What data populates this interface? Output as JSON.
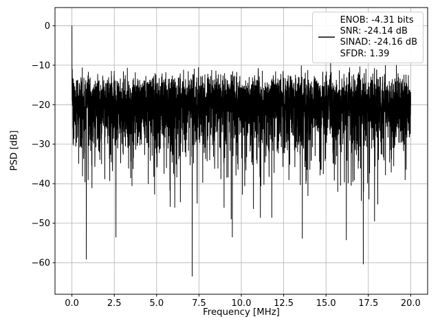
{
  "figure": {
    "background": "#ffffff"
  },
  "chart_data": {
    "type": "line",
    "title": "",
    "xlabel": "Frequency [MHz]",
    "ylabel": "PSD [dB]",
    "xlim": [
      -1,
      21
    ],
    "ylim": [
      -68,
      4.6
    ],
    "xticks": [
      0,
      2.5,
      5,
      7.5,
      10,
      12.5,
      15,
      17.5,
      20
    ],
    "xtick_labels": [
      "0.0",
      "2.5",
      "5.0",
      "7.5",
      "10.0",
      "12.5",
      "15.0",
      "17.5",
      "20.0"
    ],
    "yticks": [
      0,
      -10,
      -20,
      -30,
      -40,
      -50,
      -60
    ],
    "ytick_labels": [
      "0",
      "−10",
      "−20",
      "−30",
      "−40",
      "−50",
      "−60"
    ],
    "grid": true,
    "grid_color": "#b0b0b0",
    "spine_color": "#000000",
    "legend": {
      "position": "upper right",
      "line_color": "#000000",
      "entries": [
        "ENOB: -4.31 bits",
        "SNR: -24.14 dB",
        "SINAD: -24.16 dB",
        "SFDR: 1.39"
      ]
    },
    "series": [
      {
        "name": "PSD",
        "color": "#000000",
        "n_points": 4096,
        "x_range_mhz": [
          0,
          20
        ],
        "noise_offset_db": -18.5,
        "noise_typical_top_db": -12,
        "noise_dense_band_db": [
          -38,
          -12
        ],
        "noise_min_db": -63.5,
        "signal_peak": {
          "x": 0.0,
          "y": 0.0
        },
        "deep_notches": [
          {
            "x": 0.85,
            "y": -59.2
          },
          {
            "x": 2.6,
            "y": -53.6
          },
          {
            "x": 7.1,
            "y": -63.5
          },
          {
            "x": 9.4,
            "y": -49.0
          },
          {
            "x": 11.8,
            "y": -48.6
          },
          {
            "x": 13.6,
            "y": -53.9
          },
          {
            "x": 16.2,
            "y": -54.3
          },
          {
            "x": 17.2,
            "y": -60.4
          }
        ]
      }
    ]
  }
}
